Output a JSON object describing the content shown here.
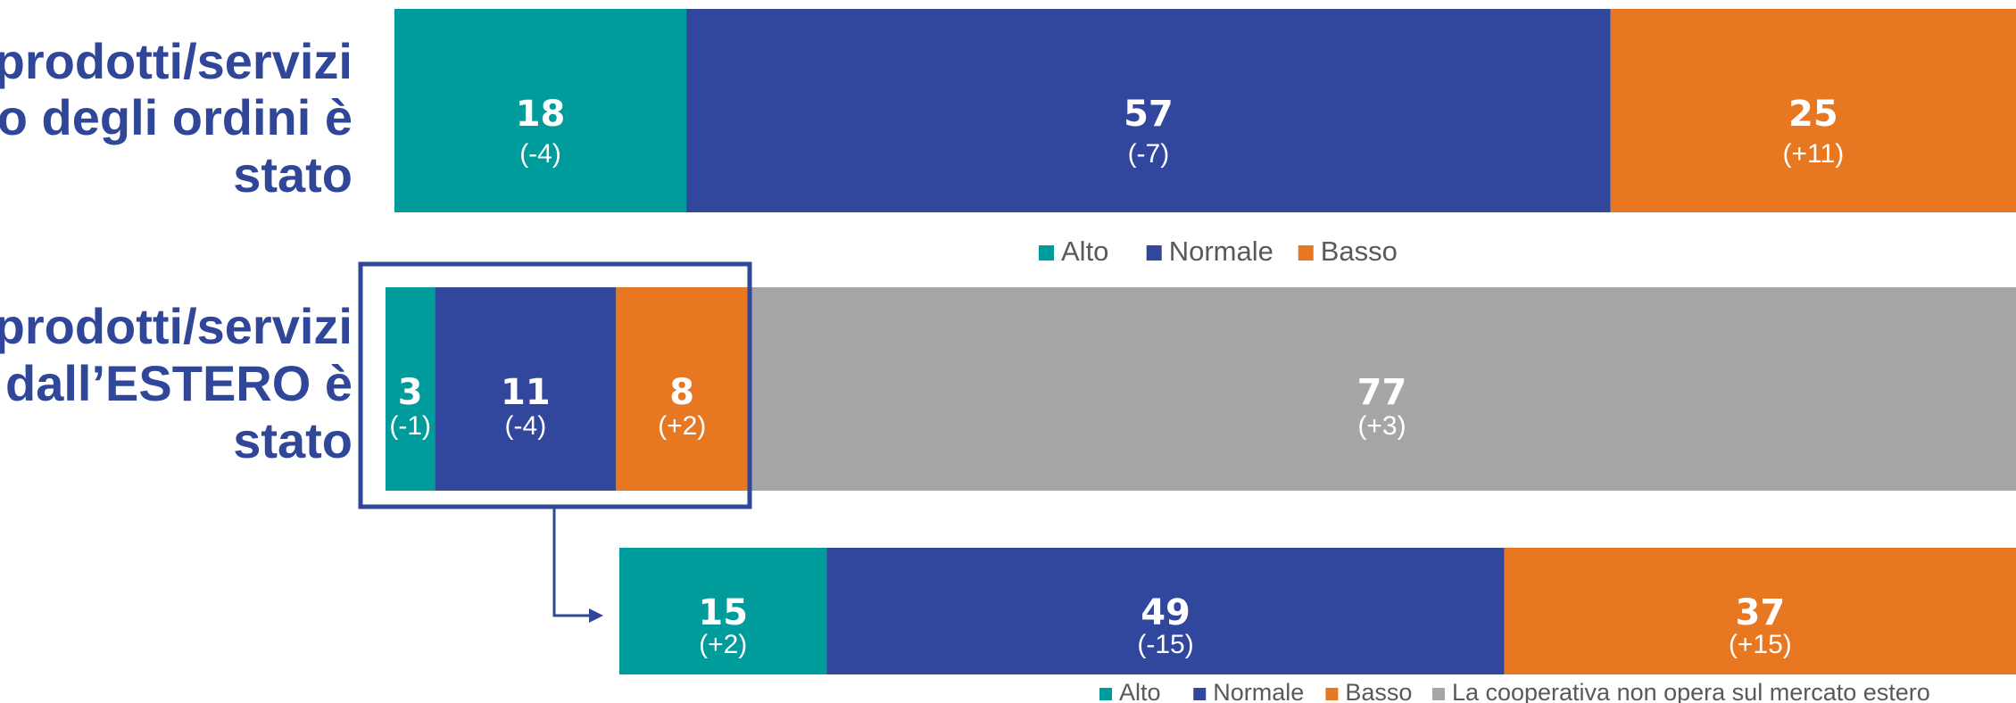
{
  "chart_data": {
    "type": "bar",
    "orientation": "horizontal-stacked-100",
    "colors": {
      "Alto": "#009B9B",
      "Normale": "#31479E",
      "Basso": "#E87722",
      "La cooperativa non opera sul mercato estero": "#A6A6A6"
    },
    "bars": [
      {
        "label_lines": [
          "prodotti/servizi",
          "o degli ordini è",
          "stato"
        ],
        "segments": [
          {
            "series": "Alto",
            "value": 18,
            "delta": "(-4)"
          },
          {
            "series": "Normale",
            "value": 57,
            "delta": "(-7)"
          },
          {
            "series": "Basso",
            "value": 25,
            "delta": "(+11)"
          }
        ]
      },
      {
        "label_lines": [
          "prodotti/servizi",
          "dall’ESTERO è",
          "stato"
        ],
        "segments": [
          {
            "series": "Alto",
            "value": 3,
            "delta": "(-1)"
          },
          {
            "series": "Normale",
            "value": 11,
            "delta": "(-4)"
          },
          {
            "series": "Basso",
            "value": 8,
            "delta": "(+2)"
          },
          {
            "series": "La cooperativa non opera sul mercato estero",
            "value": 77,
            "delta": "(+3)"
          }
        ]
      },
      {
        "label_lines": [],
        "segments": [
          {
            "series": "Alto",
            "value": 15,
            "delta": "(+2)"
          },
          {
            "series": "Normale",
            "value": 49,
            "delta": "(-15)"
          },
          {
            "series": "Basso",
            "value": 37,
            "delta": "(+15)"
          }
        ]
      }
    ],
    "legend_top": [
      "Alto",
      "Normale",
      "Basso"
    ],
    "legend_bottom": [
      "Alto",
      "Normale",
      "Basso",
      "La cooperativa non opera sul mercato estero"
    ],
    "callout": "box around the first three segments of the second bar with an arrow pointing to the third bar"
  }
}
